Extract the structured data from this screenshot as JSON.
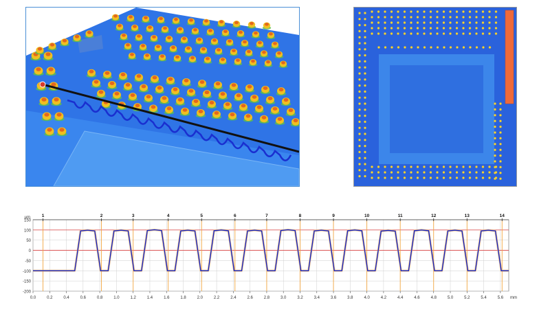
{
  "views": {
    "view3d": {
      "name": "3d-surface-view"
    },
    "top": {
      "name": "top-height-map-view"
    }
  },
  "colors": {
    "surface_low": "#1f4fd8",
    "surface_mid": "#3f8ef0",
    "bump_high": "#f0c020",
    "bump_top": "#e24a1c",
    "bump_side": "#5fbf4a",
    "profile_line": "#1428c8",
    "ref_line": "#d94040",
    "marker_line": "#f2a640",
    "grid": "#cfcfcf"
  },
  "chart_data": {
    "type": "line",
    "title": "",
    "xlabel": "",
    "ylabel": "",
    "y_unit_label": "µm",
    "x_unit_label": "mm",
    "xlim": [
      0.0,
      5.7
    ],
    "ylim": [
      -200,
      150
    ],
    "x_ticks": [
      "0.0",
      "0.2",
      "0.4",
      "0.6",
      "0.8",
      "1.0",
      "1.2",
      "1.4",
      "1.6",
      "1.8",
      "2.0",
      "2.2",
      "2.4",
      "2.6",
      "2.8",
      "3.0",
      "3.2",
      "3.4",
      "3.6",
      "3.8",
      "4.0",
      "4.2",
      "4.4",
      "4.6",
      "4.8",
      "5.0",
      "5.2",
      "5.4",
      "5.6"
    ],
    "x_tick_values": [
      0.0,
      0.2,
      0.4,
      0.6,
      0.8,
      1.0,
      1.2,
      1.4,
      1.6,
      1.8,
      2.0,
      2.2,
      2.4,
      2.6,
      2.8,
      3.0,
      3.2,
      3.4,
      3.6,
      3.8,
      4.0,
      4.2,
      4.4,
      4.6,
      4.8,
      5.0,
      5.2,
      5.4,
      5.6
    ],
    "y_ticks": [
      "150",
      "100",
      "50",
      "0",
      "-50",
      "-100",
      "-150",
      "-200"
    ],
    "y_tick_values": [
      150,
      100,
      50,
      0,
      -50,
      -100,
      -150,
      -200
    ],
    "ref_lines_y": [
      100,
      0
    ],
    "markers": [
      {
        "label": "1",
        "x": 0.12
      },
      {
        "label": "2",
        "x": 0.82
      },
      {
        "label": "3",
        "x": 1.2
      },
      {
        "label": "4",
        "x": 1.62
      },
      {
        "label": "5",
        "x": 2.02
      },
      {
        "label": "6",
        "x": 2.42
      },
      {
        "label": "7",
        "x": 2.8
      },
      {
        "label": "8",
        "x": 3.2
      },
      {
        "label": "9",
        "x": 3.6
      },
      {
        "label": "10",
        "x": 4.0
      },
      {
        "label": "11",
        "x": 4.4
      },
      {
        "label": "12",
        "x": 4.8
      },
      {
        "label": "13",
        "x": 5.2
      },
      {
        "label": "14",
        "x": 5.62
      }
    ],
    "baseline_start": {
      "x": [
        0.0,
        0.45
      ],
      "y": -100
    },
    "bumps": [
      {
        "start": 0.5,
        "peak_start": 0.57,
        "peak_end": 0.74,
        "end": 0.81,
        "peak": 95
      },
      {
        "start": 0.9,
        "peak_start": 0.97,
        "peak_end": 1.14,
        "end": 1.21,
        "peak": 95
      },
      {
        "start": 1.3,
        "peak_start": 1.37,
        "peak_end": 1.54,
        "end": 1.61,
        "peak": 97
      },
      {
        "start": 1.7,
        "peak_start": 1.77,
        "peak_end": 1.94,
        "end": 2.01,
        "peak": 95
      },
      {
        "start": 2.1,
        "peak_start": 2.17,
        "peak_end": 2.34,
        "end": 2.41,
        "peak": 96
      },
      {
        "start": 2.5,
        "peak_start": 2.57,
        "peak_end": 2.74,
        "end": 2.81,
        "peak": 95
      },
      {
        "start": 2.9,
        "peak_start": 2.97,
        "peak_end": 3.14,
        "end": 3.21,
        "peak": 97
      },
      {
        "start": 3.3,
        "peak_start": 3.37,
        "peak_end": 3.54,
        "end": 3.61,
        "peak": 95
      },
      {
        "start": 3.7,
        "peak_start": 3.77,
        "peak_end": 3.94,
        "end": 4.01,
        "peak": 96
      },
      {
        "start": 4.1,
        "peak_start": 4.17,
        "peak_end": 4.34,
        "end": 4.41,
        "peak": 94
      },
      {
        "start": 4.5,
        "peak_start": 4.57,
        "peak_end": 4.74,
        "end": 4.81,
        "peak": 96
      },
      {
        "start": 4.9,
        "peak_start": 4.97,
        "peak_end": 5.14,
        "end": 5.21,
        "peak": 95
      },
      {
        "start": 5.3,
        "peak_start": 5.37,
        "peak_end": 5.54,
        "end": 5.61,
        "peak": 95
      }
    ],
    "valley": -100,
    "end_x": 5.7,
    "grid": true,
    "legend": "none"
  }
}
